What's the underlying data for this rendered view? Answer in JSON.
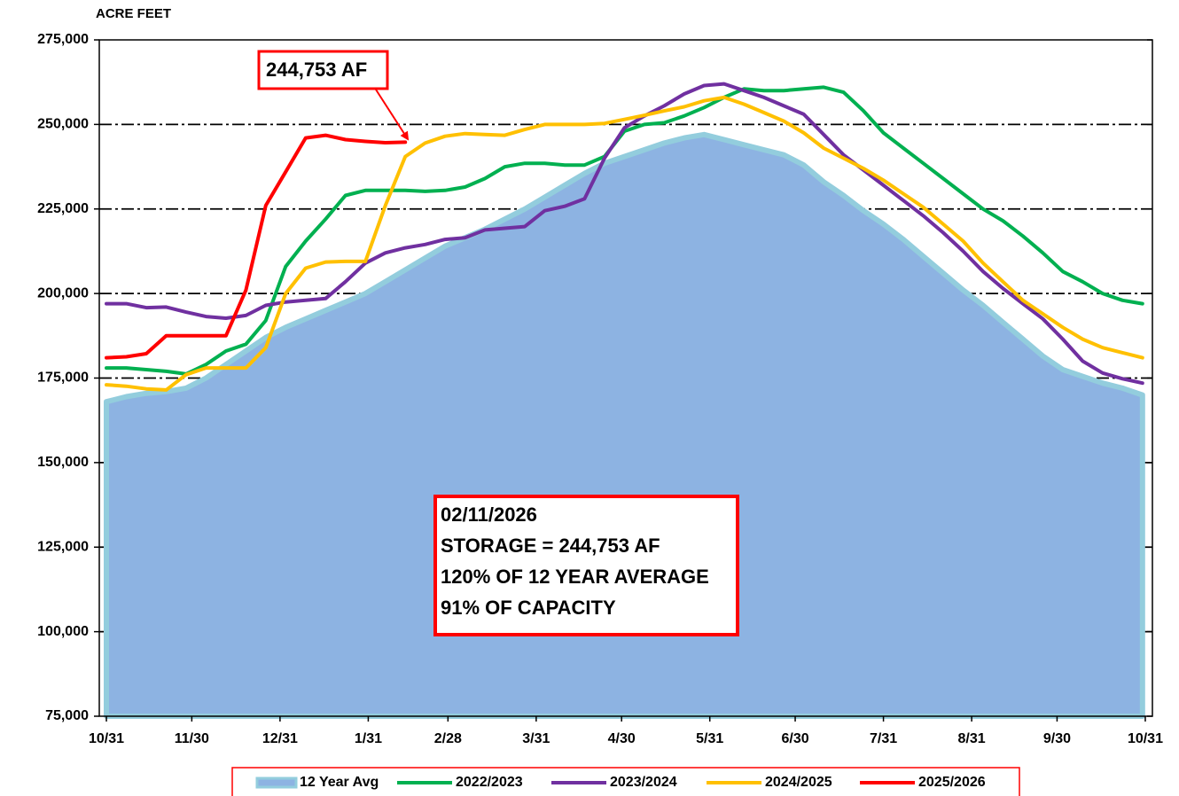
{
  "chart_data": {
    "type": "line",
    "y_label": "ACRE FEET",
    "x": [
      0,
      7,
      14,
      21,
      28,
      35,
      42,
      49,
      56,
      63,
      70,
      77,
      84,
      91,
      98,
      105,
      112,
      119,
      126,
      133,
      140,
      147,
      154,
      161,
      168,
      175,
      182,
      189,
      196,
      203,
      210,
      217,
      224,
      231,
      238,
      245,
      252,
      259,
      266,
      273,
      280,
      287,
      294,
      301,
      308,
      315,
      322,
      329,
      336,
      343,
      350,
      357,
      364
    ],
    "xlim": [
      -2.5,
      367.5
    ],
    "xticks": [
      {
        "value": 0,
        "label": "10/31"
      },
      {
        "value": 30,
        "label": "11/30"
      },
      {
        "value": 61,
        "label": "12/31"
      },
      {
        "value": 92,
        "label": "1/31"
      },
      {
        "value": 120,
        "label": "2/28"
      },
      {
        "value": 151,
        "label": "3/31"
      },
      {
        "value": 181,
        "label": "4/30"
      },
      {
        "value": 212,
        "label": "5/31"
      },
      {
        "value": 242,
        "label": "6/30"
      },
      {
        "value": 273,
        "label": "7/31"
      },
      {
        "value": 304,
        "label": "8/31"
      },
      {
        "value": 334,
        "label": "9/30"
      },
      {
        "value": 365,
        "label": "10/31"
      }
    ],
    "ylim": [
      75000,
      275000
    ],
    "yticks": [
      {
        "value": 75000,
        "label": "75,000"
      },
      {
        "value": 100000,
        "label": "100,000"
      },
      {
        "value": 125000,
        "label": "125,000"
      },
      {
        "value": 150000,
        "label": "150,000"
      },
      {
        "value": 175000,
        "label": "175,000"
      },
      {
        "value": 200000,
        "label": "200,000"
      },
      {
        "value": 225000,
        "label": "225,000"
      },
      {
        "value": 250000,
        "label": "250,000"
      },
      {
        "value": 275000,
        "label": "275,000"
      }
    ],
    "grid": true,
    "series": [
      {
        "name": "12 Year Avg",
        "kind": "area",
        "color": "#8db3e2",
        "edge_color": "#93cddd",
        "values": [
          168000,
          169500,
          170500,
          171000,
          172000,
          175000,
          179000,
          183000,
          187000,
          190000,
          192500,
          195000,
          197500,
          200000,
          203500,
          207000,
          210500,
          214000,
          216500,
          219000,
          222000,
          225000,
          228500,
          232000,
          235500,
          238500,
          240500,
          242500,
          244500,
          246000,
          247000,
          245500,
          244000,
          242500,
          241000,
          238000,
          233000,
          229000,
          224500,
          220500,
          216000,
          211000,
          206000,
          201000,
          196500,
          191500,
          186500,
          181500,
          177500,
          175500,
          173500,
          172000,
          170000
        ]
      },
      {
        "name": "2022/2023",
        "color": "#00b050",
        "values": [
          178000,
          178000,
          177500,
          177000,
          176200,
          179000,
          183000,
          185000,
          192000,
          208000,
          215500,
          222000,
          229000,
          230500,
          230500,
          230500,
          230200,
          230500,
          231500,
          234000,
          237500,
          238500,
          238500,
          238000,
          238000,
          240500,
          248000,
          250000,
          250500,
          252500,
          255000,
          258000,
          260500,
          260000,
          260000,
          260500,
          261000,
          259500,
          254000,
          247500,
          243000,
          238500,
          234000,
          229500,
          225000,
          221500,
          217000,
          212000,
          206500,
          203500,
          200000,
          198000,
          197000
        ]
      },
      {
        "name": "2023/2024",
        "color": "#7030a0",
        "values": [
          197000,
          197000,
          195800,
          196000,
          194500,
          193200,
          192700,
          193500,
          196500,
          197500,
          198000,
          198500,
          203500,
          209000,
          212000,
          213500,
          214500,
          216000,
          216500,
          218800,
          219300,
          219800,
          224500,
          225800,
          228000,
          240000,
          249000,
          252500,
          255500,
          259000,
          261500,
          262000,
          260000,
          258000,
          255500,
          253000,
          247000,
          241000,
          236500,
          232000,
          227500,
          223000,
          218000,
          212500,
          206500,
          201500,
          197000,
          192500,
          186500,
          180000,
          176500,
          174800,
          173500
        ]
      },
      {
        "name": "2024/2025",
        "color": "#ffc000",
        "values": [
          173000,
          172600,
          171800,
          171500,
          176000,
          178000,
          178000,
          178000,
          184000,
          200000,
          207500,
          209300,
          209500,
          209500,
          226000,
          240500,
          244500,
          246500,
          247300,
          247000,
          246800,
          248500,
          250000,
          250000,
          250000,
          250300,
          251500,
          252700,
          254000,
          255200,
          257000,
          258000,
          256000,
          253500,
          251000,
          247500,
          243000,
          240000,
          237000,
          233500,
          229500,
          225500,
          220500,
          215500,
          209000,
          203500,
          198000,
          194000,
          190000,
          186500,
          184000,
          182500,
          181000
        ]
      },
      {
        "name": "2025/2026",
        "color": "#ff0000",
        "values": [
          181000,
          181300,
          182200,
          187500,
          187500,
          187500,
          187500,
          201000,
          226000,
          236000,
          246000,
          246800,
          245500,
          245000,
          244600,
          244753,
          null,
          null,
          null,
          null,
          null,
          null,
          null,
          null,
          null,
          null,
          null,
          null,
          null,
          null,
          null,
          null,
          null,
          null,
          null,
          null,
          null,
          null,
          null,
          null,
          null,
          null,
          null,
          null,
          null,
          null,
          null,
          null,
          null,
          null,
          null,
          null,
          null
        ]
      }
    ],
    "annotations": [
      "244,753 AF"
    ],
    "info_box": [
      "02/11/2026",
      "STORAGE = 244,753 AF",
      "120% OF 12 YEAR AVERAGE",
      "91% OF CAPACITY"
    ]
  }
}
